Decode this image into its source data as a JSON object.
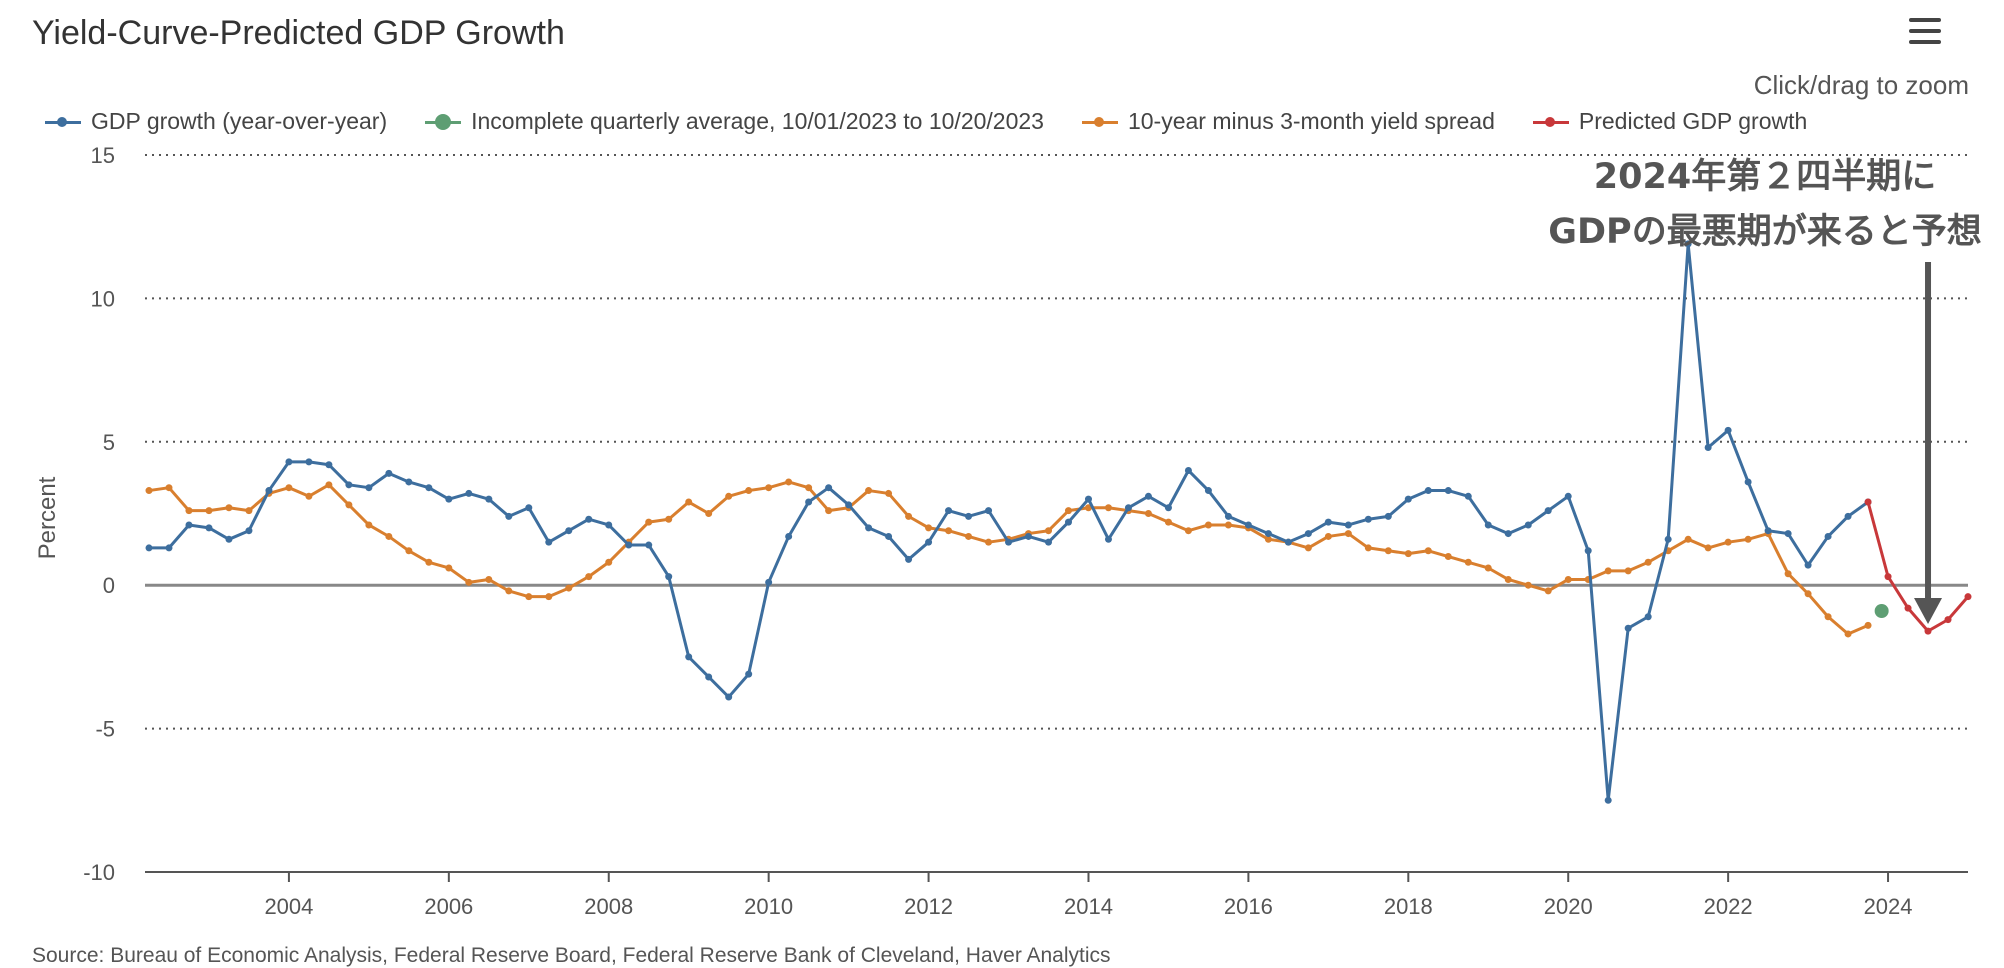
{
  "header": {
    "title": "Yield-Curve-Predicted GDP Growth",
    "zoom_hint": "Click/drag to zoom",
    "menu_icon": "hamburger-menu-icon"
  },
  "legend": [
    {
      "label": "GDP growth (year-over-year)",
      "color": "#3d6e9e"
    },
    {
      "label": "Incomplete quarterly average, 10/01/2023 to 10/20/2023",
      "color": "#5e9e73"
    },
    {
      "label": "10-year minus 3-month yield spread",
      "color": "#d97f2e"
    },
    {
      "label": "Predicted GDP growth",
      "color": "#c8383a"
    }
  ],
  "annotation": {
    "line1": "2024年第２四半期に",
    "line2": "GDPの最悪期が来ると予想"
  },
  "source": "Source: Bureau of Economic Analysis, Federal Reserve Board, Federal Reserve Bank of Cleveland, Haver Analytics",
  "chart_data": {
    "type": "line",
    "title": "Yield-Curve-Predicted GDP Growth",
    "xlabel": "",
    "ylabel": "Percent",
    "xlim": [
      2002.2,
      2025.0
    ],
    "ylim": [
      -10,
      15
    ],
    "yticks": [
      -10,
      -5,
      0,
      5,
      10,
      15
    ],
    "xticks": [
      2004,
      2006,
      2008,
      2010,
      2012,
      2014,
      2016,
      2018,
      2020,
      2022,
      2024
    ],
    "grid": "horizontal dotted",
    "legend_position": "top",
    "series": [
      {
        "name": "GDP growth (year-over-year)",
        "color": "#3d6e9e",
        "x_start": 2002.25,
        "x_step": 0.25,
        "values": [
          1.3,
          1.3,
          2.1,
          2.0,
          1.6,
          1.9,
          3.3,
          4.3,
          4.3,
          4.2,
          3.5,
          3.4,
          3.9,
          3.6,
          3.4,
          3.0,
          3.2,
          3.0,
          2.4,
          2.7,
          1.5,
          1.9,
          2.3,
          2.1,
          1.4,
          1.4,
          0.3,
          -2.5,
          -3.2,
          -3.9,
          -3.1,
          0.1,
          1.7,
          2.9,
          3.4,
          2.8,
          2.0,
          1.7,
          0.9,
          1.5,
          2.6,
          2.4,
          2.6,
          1.5,
          1.7,
          1.5,
          2.2,
          3.0,
          1.6,
          2.7,
          3.1,
          2.7,
          4.0,
          3.3,
          2.4,
          2.1,
          1.8,
          1.5,
          1.8,
          2.2,
          2.1,
          2.3,
          2.4,
          3.0,
          3.3,
          3.3,
          3.1,
          2.1,
          1.8,
          2.1,
          2.6,
          3.1,
          1.2,
          -7.5,
          -1.5,
          -1.1,
          1.6,
          11.9,
          4.8,
          5.4,
          3.6,
          1.9,
          1.8,
          0.7,
          1.7,
          2.4,
          2.9
        ]
      },
      {
        "name": "Incomplete quarterly average, 10/01/2023 to 10/20/2023",
        "color": "#5e9e73",
        "points": [
          [
            2023.92,
            -0.9
          ]
        ]
      },
      {
        "name": "10-year minus 3-month yield spread",
        "color": "#d97f2e",
        "x_start": 2002.25,
        "x_step": 0.25,
        "values": [
          3.3,
          3.4,
          2.6,
          2.6,
          2.7,
          2.6,
          3.2,
          3.4,
          3.1,
          3.5,
          2.8,
          2.1,
          1.7,
          1.2,
          0.8,
          0.6,
          0.1,
          0.2,
          -0.2,
          -0.4,
          -0.4,
          -0.1,
          0.3,
          0.8,
          1.5,
          2.2,
          2.3,
          2.9,
          2.5,
          3.1,
          3.3,
          3.4,
          3.6,
          3.4,
          2.6,
          2.7,
          3.3,
          3.2,
          2.4,
          2.0,
          1.9,
          1.7,
          1.5,
          1.6,
          1.8,
          1.9,
          2.6,
          2.7,
          2.7,
          2.6,
          2.5,
          2.2,
          1.9,
          2.1,
          2.1,
          2.0,
          1.6,
          1.5,
          1.3,
          1.7,
          1.8,
          1.3,
          1.2,
          1.1,
          1.2,
          1.0,
          0.8,
          0.6,
          0.2,
          0.0,
          -0.2,
          0.2,
          0.2,
          0.5,
          0.5,
          0.8,
          1.2,
          1.6,
          1.3,
          1.5,
          1.6,
          1.8,
          0.4,
          -0.3,
          -1.1,
          -1.7,
          -1.4
        ]
      },
      {
        "name": "Predicted GDP growth",
        "color": "#c8383a",
        "x_start": 2023.75,
        "x_step": 0.25,
        "values": [
          2.9,
          0.3,
          -0.8,
          -1.6,
          -1.2,
          -0.4
        ]
      }
    ],
    "reference_line": 0,
    "annotation_arrow_x": 2024.5
  }
}
